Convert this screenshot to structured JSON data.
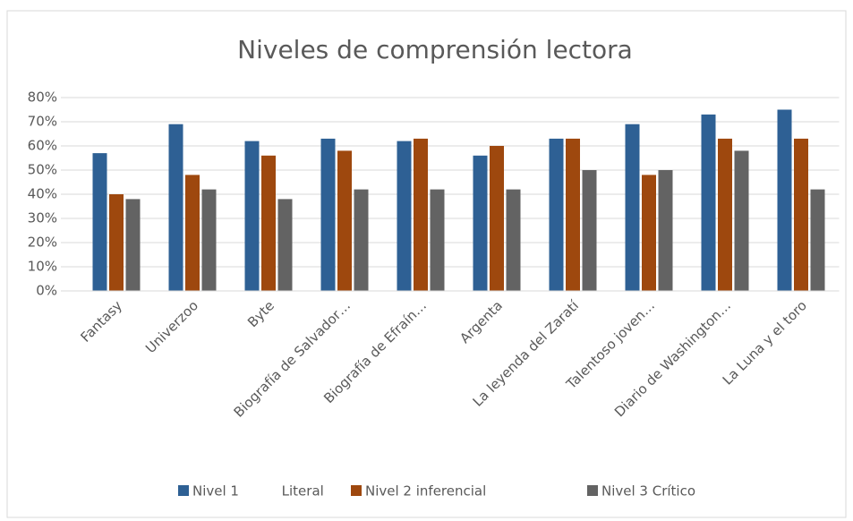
{
  "chart_data": {
    "type": "bar",
    "title": "Niveles de comprensión lectora",
    "categories": [
      "Fantasy",
      "Univerzoo",
      "Byte",
      "Biografía de Salvador…",
      "Biografía de Efraín…",
      "Argenta",
      "La leyenda del Zaratí",
      "Talentoso joven…",
      "Diario de Washington…",
      "La Luna y el toro"
    ],
    "series": [
      {
        "name": "Nivel 1          Literal",
        "color": "#2e6094",
        "values": [
          57,
          69,
          62,
          63,
          62,
          56,
          63,
          69,
          73,
          75
        ]
      },
      {
        "name": "Nivel 2 inferencial",
        "color": "#9e480e",
        "values": [
          40,
          48,
          56,
          58,
          63,
          60,
          63,
          48,
          63,
          63
        ]
      },
      {
        "name": "Nivel 3 Crítico",
        "color": "#636363",
        "values": [
          38,
          42,
          38,
          42,
          42,
          42,
          50,
          50,
          58,
          42
        ]
      }
    ],
    "ylim": [
      0,
      80
    ],
    "yticks": [
      {
        "value": 0,
        "label": "0%"
      },
      {
        "value": 10,
        "label": "10%"
      },
      {
        "value": 20,
        "label": "20%"
      },
      {
        "value": 30,
        "label": "30%"
      },
      {
        "value": 40,
        "label": "40%"
      },
      {
        "value": 50,
        "label": "50%"
      },
      {
        "value": 60,
        "label": "60%"
      },
      {
        "value": 70,
        "label": "70%"
      },
      {
        "value": 80,
        "label": "80%"
      }
    ],
    "grid": true,
    "legend": "bottom"
  }
}
